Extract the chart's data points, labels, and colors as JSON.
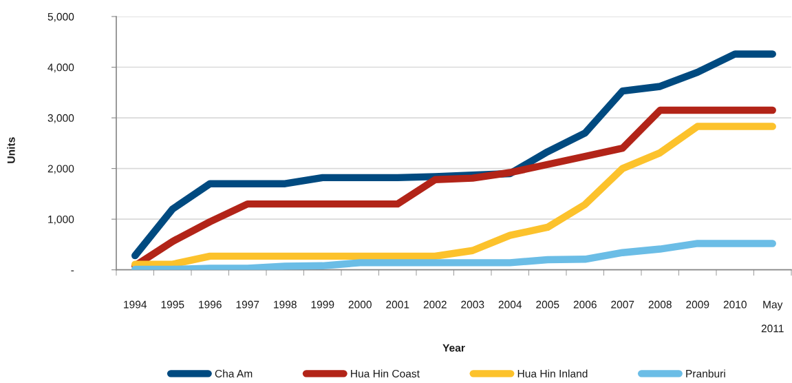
{
  "chart_data": {
    "type": "line",
    "xlabel": "Year",
    "ylabel": "Units",
    "categories": [
      "1994",
      "1995",
      "1996",
      "1997",
      "1998",
      "1999",
      "2000",
      "2001",
      "2002",
      "2003",
      "2004",
      "2005",
      "2006",
      "2007",
      "2008",
      "2009",
      "2010",
      "May\n2011"
    ],
    "series": [
      {
        "name": "Cha Am",
        "color": "#004a80",
        "values": [
          280,
          1200,
          1700,
          1700,
          1700,
          1820,
          1820,
          1820,
          1840,
          1870,
          1900,
          2330,
          2700,
          3530,
          3620,
          3900,
          4260,
          4260
        ]
      },
      {
        "name": "Hua Hin Coast",
        "color": "#b22418",
        "values": [
          80,
          560,
          950,
          1300,
          1300,
          1300,
          1300,
          1300,
          1780,
          1810,
          1920,
          2080,
          2240,
          2400,
          3150,
          3150,
          3150,
          3150
        ]
      },
      {
        "name": "Hua Hin Inland",
        "color": "#fcc22c",
        "values": [
          110,
          110,
          270,
          270,
          270,
          270,
          270,
          270,
          270,
          380,
          680,
          840,
          1290,
          2000,
          2310,
          2830,
          2830,
          2830
        ]
      },
      {
        "name": "Pranburi",
        "color": "#6bbde6",
        "values": [
          10,
          10,
          30,
          30,
          70,
          80,
          140,
          140,
          140,
          140,
          140,
          200,
          210,
          340,
          410,
          520,
          520,
          520
        ]
      }
    ],
    "ylim": [
      0,
      5000
    ],
    "yticks": [
      {
        "value": 0,
        "label": "-"
      },
      {
        "value": 1000,
        "label": "1,000"
      },
      {
        "value": 2000,
        "label": "2,000"
      },
      {
        "value": 3000,
        "label": "3,000"
      },
      {
        "value": 4000,
        "label": "4,000"
      },
      {
        "value": 5000,
        "label": "5,000"
      }
    ],
    "grid": "y",
    "legend": "bottom",
    "line_style": "solid"
  }
}
